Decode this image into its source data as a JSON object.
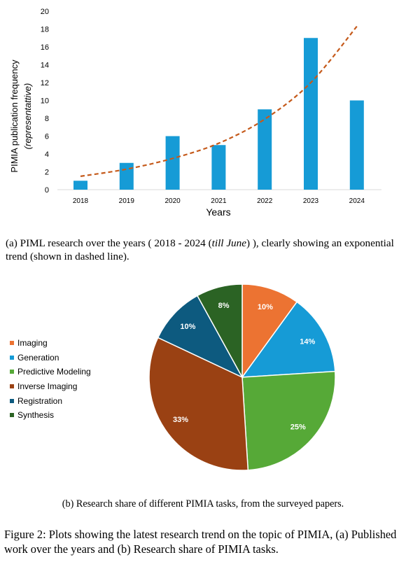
{
  "chart_data": [
    {
      "type": "bar",
      "categories": [
        "2018",
        "2019",
        "2020",
        "2021",
        "2022",
        "2023",
        "2024"
      ],
      "values": [
        1,
        3,
        6,
        5,
        9,
        17,
        10
      ],
      "trend": {
        "x": [
          "2018",
          "2019",
          "2020",
          "2021",
          "2022",
          "2023",
          "2024"
        ],
        "values": [
          1.5,
          2.3,
          3.5,
          5.2,
          7.9,
          12.0,
          18.3
        ]
      },
      "xlabel": "Years",
      "ylabel": "PIMIA publication frequency",
      "ylabel_sub": "(representattive)",
      "yticks": [
        0,
        2,
        4,
        6,
        8,
        10,
        12,
        14,
        16,
        18,
        20
      ],
      "ylim": [
        0,
        20
      ],
      "grid": false,
      "colors": {
        "bar": "#169bd6",
        "trend": "#c55a1b"
      }
    },
    {
      "type": "pie",
      "labels": [
        "Imaging",
        "Generation",
        "Predictive Modeling",
        "Inverse Imaging",
        "Registration",
        "Synthesis"
      ],
      "values": [
        10,
        14,
        25,
        33,
        10,
        8
      ],
      "data_labels": [
        "10%",
        "14%",
        "25%",
        "33%",
        "10%",
        "8%"
      ],
      "colors": [
        "#ec7332",
        "#169bd6",
        "#56a937",
        "#9a4113",
        "#0d5a7f",
        "#2b6324"
      ],
      "legend": "left"
    }
  ],
  "captions": {
    "a": "(a) PIML research over the years ( 2018 - 2024 (till June) ), clearly showing an exponential trend (shown in dashed line).",
    "a_pre": "(a) PIML research over the years ( 2018 - 2024 (",
    "a_italic": "till June",
    "a_post": ") ), clearly showing an exponential trend (shown in dashed line).",
    "b": "(b) Research share of different PIMIA tasks, from the surveyed papers.",
    "figure": "Figure 2: Plots showing the latest research trend on the topic of PIMIA, (a) Published work over the years and (b) Research share of PIMIA tasks."
  }
}
